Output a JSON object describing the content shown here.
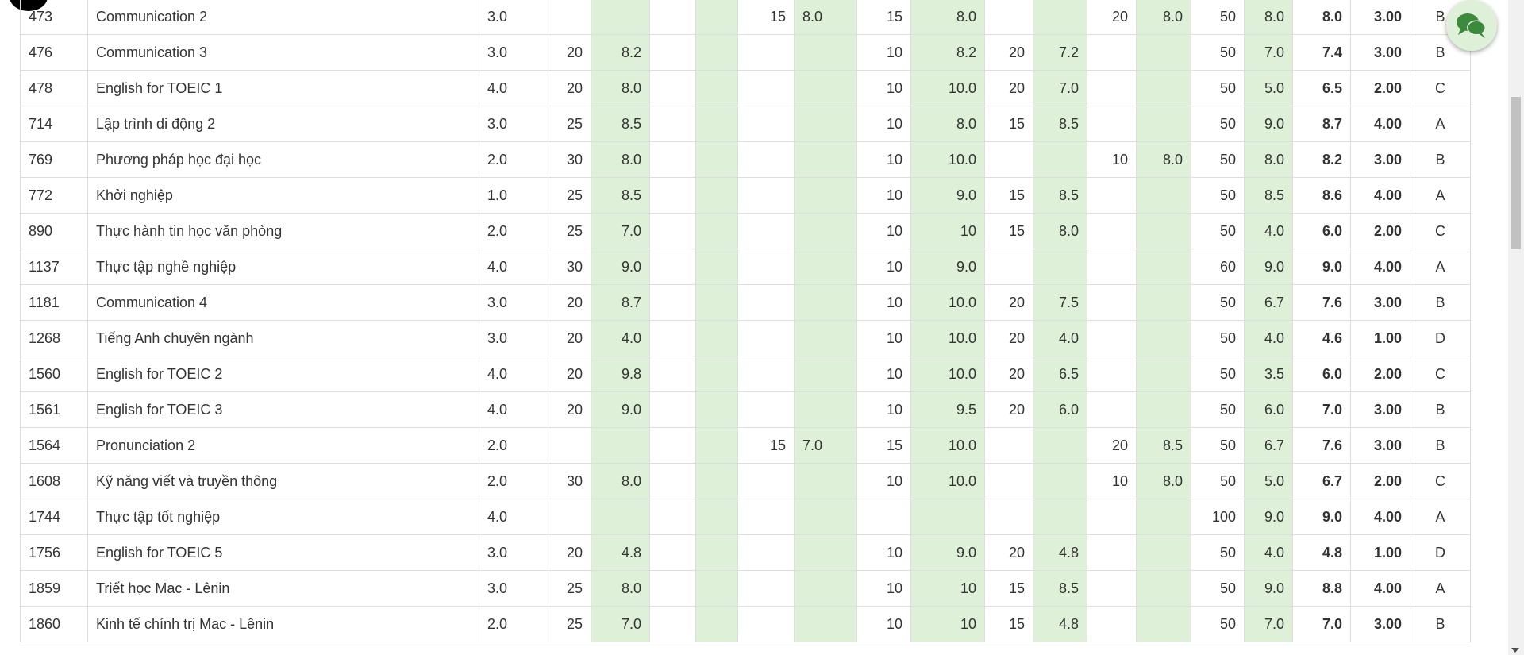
{
  "grades": {
    "rows": [
      [
        "473",
        "Communication 2",
        "3.0",
        "",
        "",
        "",
        "",
        "15",
        "8.0",
        "15",
        "8.0",
        "",
        "",
        "20",
        "8.0",
        "50",
        "8.0",
        "8.0",
        "3.00",
        "B"
      ],
      [
        "476",
        "Communication 3",
        "3.0",
        "20",
        "8.2",
        "",
        "",
        "",
        "",
        "10",
        "8.2",
        "20",
        "7.2",
        "",
        "",
        "50",
        "7.0",
        "7.4",
        "3.00",
        "B"
      ],
      [
        "478",
        "English for TOEIC 1",
        "4.0",
        "20",
        "8.0",
        "",
        "",
        "",
        "",
        "10",
        "10.0",
        "20",
        "7.0",
        "",
        "",
        "50",
        "5.0",
        "6.5",
        "2.00",
        "C"
      ],
      [
        "714",
        "Lập trình di động 2",
        "3.0",
        "25",
        "8.5",
        "",
        "",
        "",
        "",
        "10",
        "8.0",
        "15",
        "8.5",
        "",
        "",
        "50",
        "9.0",
        "8.7",
        "4.00",
        "A"
      ],
      [
        "769",
        "Phương pháp học đại học",
        "2.0",
        "30",
        "8.0",
        "",
        "",
        "",
        "",
        "10",
        "10.0",
        "",
        "",
        "10",
        "8.0",
        "50",
        "8.0",
        "8.2",
        "3.00",
        "B"
      ],
      [
        "772",
        "Khởi nghiệp",
        "1.0",
        "25",
        "8.5",
        "",
        "",
        "",
        "",
        "10",
        "9.0",
        "15",
        "8.5",
        "",
        "",
        "50",
        "8.5",
        "8.6",
        "4.00",
        "A"
      ],
      [
        "890",
        "Thực hành tin học văn phòng",
        "2.0",
        "25",
        "7.0",
        "",
        "",
        "",
        "",
        "10",
        "10",
        "15",
        "8.0",
        "",
        "",
        "50",
        "4.0",
        "6.0",
        "2.00",
        "C"
      ],
      [
        "1137",
        "Thực tập nghề nghiệp",
        "4.0",
        "30",
        "9.0",
        "",
        "",
        "",
        "",
        "10",
        "9.0",
        "",
        "",
        "",
        "",
        "60",
        "9.0",
        "9.0",
        "4.00",
        "A"
      ],
      [
        "1181",
        "Communication 4",
        "3.0",
        "20",
        "8.7",
        "",
        "",
        "",
        "",
        "10",
        "10.0",
        "20",
        "7.5",
        "",
        "",
        "50",
        "6.7",
        "7.6",
        "3.00",
        "B"
      ],
      [
        "1268",
        "Tiếng Anh chuyên ngành",
        "3.0",
        "20",
        "4.0",
        "",
        "",
        "",
        "",
        "10",
        "10.0",
        "20",
        "4.0",
        "",
        "",
        "50",
        "4.0",
        "4.6",
        "1.00",
        "D"
      ],
      [
        "1560",
        "English for TOEIC 2",
        "4.0",
        "20",
        "9.8",
        "",
        "",
        "",
        "",
        "10",
        "10.0",
        "20",
        "6.5",
        "",
        "",
        "50",
        "3.5",
        "6.0",
        "2.00",
        "C"
      ],
      [
        "1561",
        "English for TOEIC 3",
        "4.0",
        "20",
        "9.0",
        "",
        "",
        "",
        "",
        "10",
        "9.5",
        "20",
        "6.0",
        "",
        "",
        "50",
        "6.0",
        "7.0",
        "3.00",
        "B"
      ],
      [
        "1564",
        "Pronunciation 2",
        "2.0",
        "",
        "",
        "",
        "",
        "15",
        "7.0",
        "15",
        "10.0",
        "",
        "",
        "20",
        "8.5",
        "50",
        "6.7",
        "7.6",
        "3.00",
        "B"
      ],
      [
        "1608",
        "Kỹ năng viết và truyền thông",
        "2.0",
        "30",
        "8.0",
        "",
        "",
        "",
        "",
        "10",
        "10.0",
        "",
        "",
        "10",
        "8.0",
        "50",
        "5.0",
        "6.7",
        "2.00",
        "C"
      ],
      [
        "1744",
        "Thực tập tốt nghiệp",
        "4.0",
        "",
        "",
        "",
        "",
        "",
        "",
        "",
        "",
        "",
        "",
        "",
        "",
        "100",
        "9.0",
        "9.0",
        "4.00",
        "A"
      ],
      [
        "1756",
        "English for TOEIC 5",
        "3.0",
        "20",
        "4.8",
        "",
        "",
        "",
        "",
        "10",
        "9.0",
        "20",
        "4.8",
        "",
        "",
        "50",
        "4.0",
        "4.8",
        "1.00",
        "D"
      ],
      [
        "1859",
        "Triết học Mac - Lênin",
        "3.0",
        "25",
        "8.0",
        "",
        "",
        "",
        "",
        "10",
        "10",
        "15",
        "8.5",
        "",
        "",
        "50",
        "9.0",
        "8.8",
        "4.00",
        "A"
      ],
      [
        "1860",
        "Kinh tế chính trị Mac - Lênin",
        "2.0",
        "25",
        "7.0",
        "",
        "",
        "",
        "",
        "10",
        "10",
        "15",
        "4.8",
        "",
        "",
        "50",
        "7.0",
        "7.0",
        "3.00",
        "B"
      ]
    ]
  },
  "icons": {
    "chat": "chat-bubbles-icon"
  },
  "colors": {
    "score_cell_bg": "#dff0d8",
    "chat_icon": "#3c8a3c",
    "chat_bg": "#dff0d8"
  }
}
